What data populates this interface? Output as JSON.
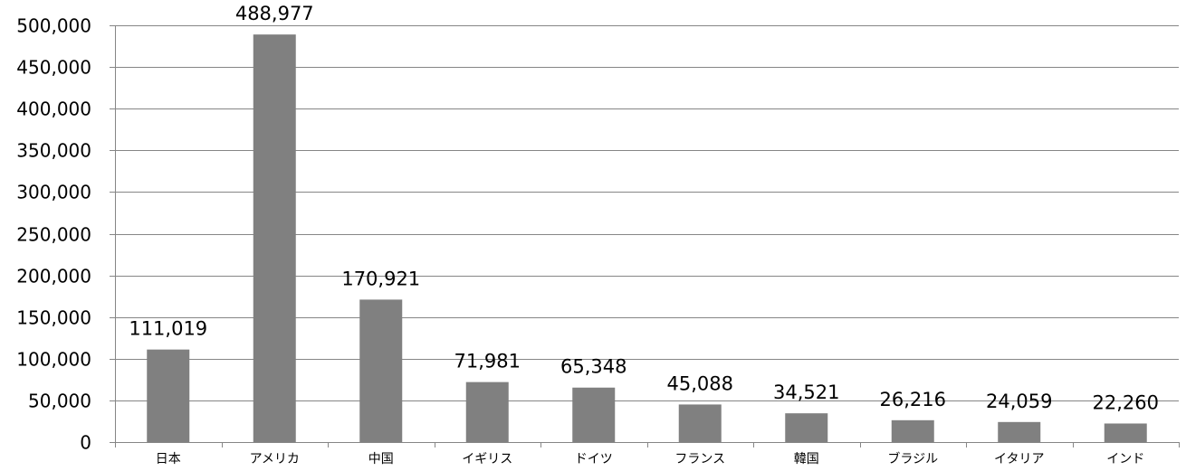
{
  "chart_data": {
    "type": "bar",
    "categories": [
      "日本",
      "アメリカ",
      "中国",
      "イギリス",
      "ドイツ",
      "フランス",
      "韓国",
      "ブラジル",
      "イタリア",
      "インド"
    ],
    "values": [
      111019,
      488977,
      170921,
      71981,
      65348,
      45088,
      34521,
      26216,
      24059,
      22260
    ],
    "value_labels": [
      "111,019",
      "488,977",
      "170,921",
      "71,981",
      "65,348",
      "45,088",
      "34,521",
      "26,216",
      "24,059",
      "22,260"
    ],
    "ylim": [
      0,
      500000
    ],
    "y_ticks": [
      0,
      50000,
      100000,
      150000,
      200000,
      250000,
      300000,
      350000,
      400000,
      450000,
      500000
    ],
    "y_tick_labels": [
      "0",
      "50,000",
      "100,000",
      "150,000",
      "200,000",
      "250,000",
      "300,000",
      "350,000",
      "400,000",
      "450,000",
      "500,000"
    ],
    "grid": true,
    "legend": "none",
    "bar_color": "#808080",
    "grid_color": "#868686"
  }
}
